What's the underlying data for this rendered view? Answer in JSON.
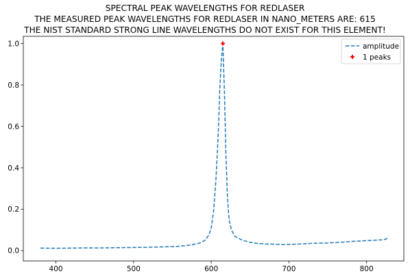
{
  "chart_data": {
    "type": "line",
    "title_lines": [
      "SPECTRAL PEAK WAVELENGTHS FOR REDLASER",
      "THE MEASURED PEAK WAVELENGTHS FOR REDLASER IN NANO_METERS ARE: 615",
      "THE NIST STANDARD STRONG LINE WAVELENGTHS DO NOT EXIST FOR THIS ELEMENT!"
    ],
    "xlabel": "",
    "ylabel": "",
    "xlim": [
      358,
      848
    ],
    "ylim": [
      -0.05,
      1.035
    ],
    "xticks": [
      400,
      500,
      600,
      700,
      800
    ],
    "yticks": [
      0.0,
      0.2,
      0.4,
      0.6,
      0.8,
      1.0
    ],
    "ytick_labels": [
      "0.0",
      "0.2",
      "0.4",
      "0.6",
      "0.8",
      "1.0"
    ],
    "grid": false,
    "legend_position": "top-right",
    "series": [
      {
        "name": "amplitude",
        "style": "dashed",
        "color": "#1f77b4",
        "points": [
          [
            380,
            0.012
          ],
          [
            400,
            0.011
          ],
          [
            420,
            0.012
          ],
          [
            440,
            0.013
          ],
          [
            460,
            0.013
          ],
          [
            480,
            0.014
          ],
          [
            500,
            0.015
          ],
          [
            520,
            0.016
          ],
          [
            540,
            0.018
          ],
          [
            555,
            0.02
          ],
          [
            565,
            0.023
          ],
          [
            575,
            0.028
          ],
          [
            585,
            0.036
          ],
          [
            592,
            0.05
          ],
          [
            597,
            0.075
          ],
          [
            600,
            0.11
          ],
          [
            603,
            0.19
          ],
          [
            606,
            0.34
          ],
          [
            609,
            0.56
          ],
          [
            611,
            0.78
          ],
          [
            613,
            0.92
          ],
          [
            615,
            1.0
          ],
          [
            617,
            0.76
          ],
          [
            619,
            0.45
          ],
          [
            621,
            0.25
          ],
          [
            623,
            0.15
          ],
          [
            626,
            0.1
          ],
          [
            630,
            0.07
          ],
          [
            640,
            0.05
          ],
          [
            650,
            0.04
          ],
          [
            660,
            0.034
          ],
          [
            670,
            0.032
          ],
          [
            680,
            0.031
          ],
          [
            690,
            0.03
          ],
          [
            700,
            0.03
          ],
          [
            710,
            0.031
          ],
          [
            720,
            0.033
          ],
          [
            730,
            0.035
          ],
          [
            740,
            0.036
          ],
          [
            750,
            0.037
          ],
          [
            760,
            0.039
          ],
          [
            770,
            0.041
          ],
          [
            780,
            0.044
          ],
          [
            790,
            0.046
          ],
          [
            800,
            0.048
          ],
          [
            810,
            0.05
          ],
          [
            820,
            0.052
          ],
          [
            825,
            0.055
          ],
          [
            828,
            0.068
          ]
        ]
      },
      {
        "name": "1 peaks",
        "style": "marker",
        "marker": "+",
        "color": "#ff0000",
        "points": [
          [
            615,
            1.0
          ]
        ]
      }
    ]
  }
}
